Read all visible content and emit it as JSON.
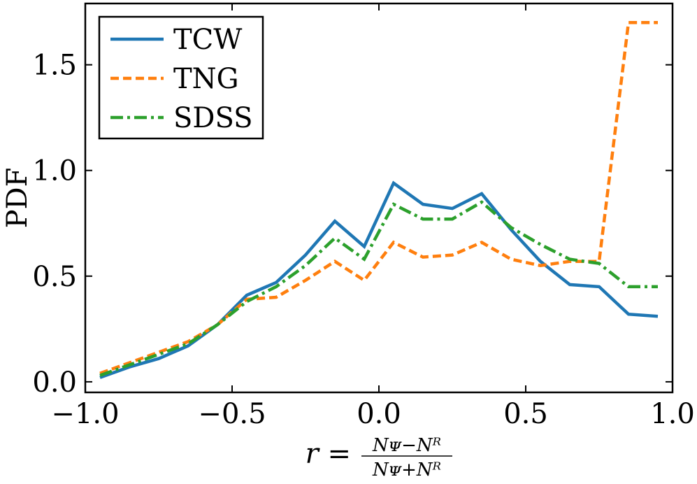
{
  "chart_data": {
    "type": "line",
    "title": "",
    "ylabel": "PDF",
    "xlabel": {
      "prefix": "r =",
      "numerator": "Nᴪ−Nᴿ",
      "denominator": "Nᴪ+Nᴿ"
    },
    "xlim": [
      -1.0,
      1.0
    ],
    "ylim": [
      -0.05,
      1.79
    ],
    "xticks": [
      -1.0,
      -0.5,
      0.0,
      0.5,
      1.0
    ],
    "xtick_labels": [
      "−1.0",
      "−0.5",
      "0.0",
      "0.5",
      "1.0"
    ],
    "yticks": [
      0.0,
      0.5,
      1.0,
      1.5
    ],
    "ytick_labels": [
      "0.0",
      "0.5",
      "1.0",
      "1.5"
    ],
    "grid": false,
    "legend_position": "top-left",
    "x": [
      -0.95,
      -0.85,
      -0.75,
      -0.65,
      -0.55,
      -0.45,
      -0.35,
      -0.25,
      -0.15,
      -0.05,
      0.05,
      0.15,
      0.25,
      0.35,
      0.45,
      0.55,
      0.65,
      0.75,
      0.85,
      0.95
    ],
    "series": [
      {
        "name": "TCW",
        "color": "#1f77b4",
        "dash": "solid",
        "values": [
          0.02,
          0.07,
          0.11,
          0.17,
          0.27,
          0.41,
          0.47,
          0.6,
          0.76,
          0.64,
          0.94,
          0.84,
          0.82,
          0.89,
          0.72,
          0.57,
          0.46,
          0.45,
          0.32,
          0.31
        ]
      },
      {
        "name": "TNG",
        "color": "#ff7f0e",
        "dash": "dashed",
        "values": [
          0.04,
          0.09,
          0.14,
          0.19,
          0.27,
          0.39,
          0.4,
          0.48,
          0.57,
          0.48,
          0.66,
          0.59,
          0.6,
          0.66,
          0.58,
          0.55,
          0.57,
          0.57,
          1.7,
          1.7
        ]
      },
      {
        "name": "SDSS",
        "color": "#2ca02c",
        "dash": "dashdot",
        "values": [
          0.03,
          0.08,
          0.13,
          0.18,
          0.27,
          0.38,
          0.45,
          0.55,
          0.68,
          0.58,
          0.84,
          0.77,
          0.77,
          0.85,
          0.73,
          0.65,
          0.58,
          0.56,
          0.45,
          0.45
        ]
      }
    ]
  }
}
